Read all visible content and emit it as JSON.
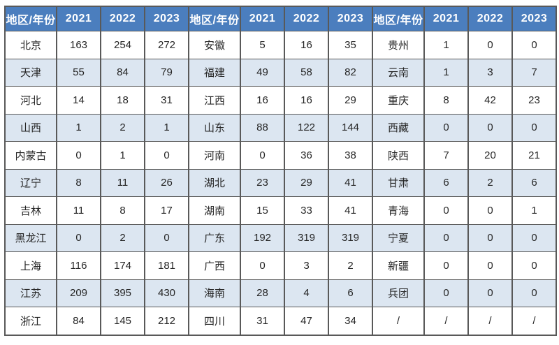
{
  "colors": {
    "header_bg": "#4b7ebe",
    "header_text": "#ffffff",
    "row_bg": "#ffffff",
    "row_alt_bg": "#dce6f1",
    "border": "#595959",
    "cell_text": "#262626",
    "page_bg": "#ffffff"
  },
  "chart_data": {
    "type": "table",
    "header_label": "地区/年份",
    "year_columns": [
      "2021",
      "2022",
      "2023"
    ],
    "column_groups": [
      {
        "rows": [
          [
            "北京",
            163,
            254,
            272
          ],
          [
            "天津",
            55,
            84,
            79
          ],
          [
            "河北",
            14,
            18,
            31
          ],
          [
            "山西",
            1,
            2,
            1
          ],
          [
            "内蒙古",
            0,
            1,
            0
          ],
          [
            "辽宁",
            8,
            11,
            26
          ],
          [
            "吉林",
            11,
            8,
            17
          ],
          [
            "黑龙江",
            0,
            2,
            0
          ],
          [
            "上海",
            116,
            174,
            181
          ],
          [
            "江苏",
            209,
            395,
            430
          ],
          [
            "浙江",
            84,
            145,
            212
          ]
        ]
      },
      {
        "rows": [
          [
            "安徽",
            5,
            16,
            35
          ],
          [
            "福建",
            49,
            58,
            82
          ],
          [
            "江西",
            16,
            16,
            29
          ],
          [
            "山东",
            88,
            122,
            144
          ],
          [
            "河南",
            0,
            36,
            38
          ],
          [
            "湖北",
            23,
            29,
            41
          ],
          [
            "湖南",
            15,
            33,
            41
          ],
          [
            "广东",
            192,
            319,
            319
          ],
          [
            "广西",
            0,
            3,
            2
          ],
          [
            "海南",
            28,
            4,
            6
          ],
          [
            "四川",
            31,
            47,
            34
          ]
        ]
      },
      {
        "rows": [
          [
            "贵州",
            1,
            0,
            0
          ],
          [
            "云南",
            1,
            3,
            7
          ],
          [
            "重庆",
            8,
            42,
            23
          ],
          [
            "西藏",
            0,
            0,
            0
          ],
          [
            "陕西",
            7,
            20,
            21
          ],
          [
            "甘肃",
            6,
            2,
            6
          ],
          [
            "青海",
            0,
            0,
            1
          ],
          [
            "宁夏",
            0,
            0,
            0
          ],
          [
            "新疆",
            0,
            0,
            0
          ],
          [
            "兵团",
            0,
            0,
            0
          ],
          [
            "/",
            "/",
            "/",
            "/"
          ]
        ]
      }
    ]
  }
}
